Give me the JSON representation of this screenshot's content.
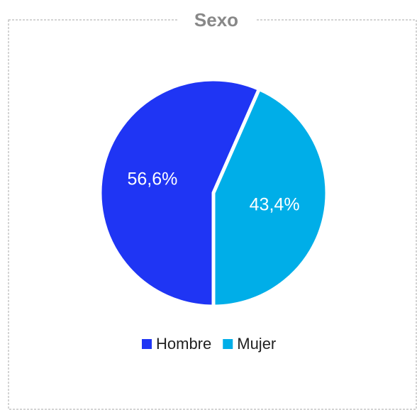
{
  "chart_data": {
    "type": "pie",
    "title": "Sexo",
    "categories": [
      "Hombre",
      "Mujer"
    ],
    "values": [
      56.6,
      43.4
    ],
    "value_labels": [
      "56,6%",
      "43,4%"
    ],
    "colors": [
      "#1f35f4",
      "#00aee8"
    ],
    "legend": "bottom"
  }
}
